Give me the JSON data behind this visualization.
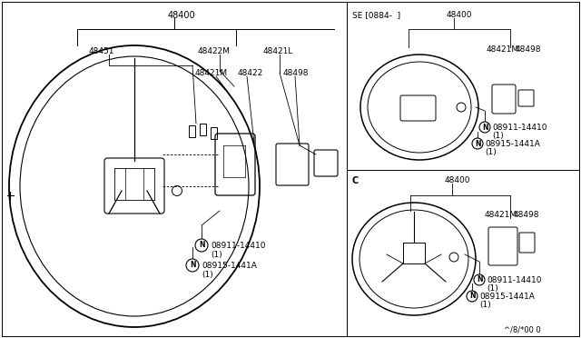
{
  "bg_color": "#ffffff",
  "border_color": "#000000",
  "line_color": "#000000",
  "text_color": "#000000",
  "fig_width": 6.4,
  "fig_height": 3.72,
  "dpi": 100,
  "bottom_right_text": "^/8/*00 0",
  "upper_right_label": "SE [0884-  ]",
  "lower_right_label": "C",
  "main_48400": "48400",
  "main_48451": "48451",
  "main_48422M": "48422M",
  "main_48421L": "48421L",
  "main_48421M": "48421M",
  "main_48422": "48422",
  "main_48498": "48498",
  "nut1_label": "08911-14410",
  "nut1_qty": "(1)",
  "nut2_label": "08915-1441A",
  "nut2_qty": "(1)",
  "se_48400": "48400",
  "se_48421M": "48421M",
  "se_48498": "48498",
  "c_48400": "48400",
  "c_48421M": "48421M",
  "c_48498": "48498"
}
